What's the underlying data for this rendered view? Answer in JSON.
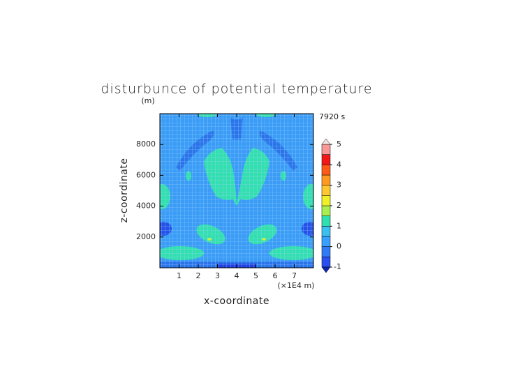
{
  "chart_data": {
    "type": "contour",
    "title": "disturbunce of potential temperature",
    "y_unit": "(m)",
    "time_label": "7920 s",
    "x_label": "x-coordinate",
    "x_unit": "(×1E4 m)",
    "y_label": "z-coordinate",
    "xlim": [
      0,
      8
    ],
    "xticks": [
      1,
      2,
      3,
      4,
      5,
      6,
      7
    ],
    "ylim": [
      0,
      10000
    ],
    "yticks": [
      2000,
      4000,
      6000,
      8000
    ],
    "colorbar": {
      "lim": [
        -1,
        5
      ],
      "ticks": [
        -1,
        0,
        1,
        2,
        3,
        4,
        5
      ],
      "levels": [
        -1,
        -0.5,
        0,
        0.5,
        1,
        1.5,
        2,
        2.5,
        3,
        3.5,
        4,
        4.5,
        5
      ],
      "colors": [
        "#2a50f0",
        "#2f7cf5",
        "#3aa0ff",
        "#3cc0f0",
        "#30e0b0",
        "#a8f050",
        "#f0f028",
        "#ffc830",
        "#ff9a20",
        "#ff5a18",
        "#f01818",
        "#f89898"
      ],
      "over_color": "#f4e4e4",
      "under_color": "#1028b0"
    }
  }
}
